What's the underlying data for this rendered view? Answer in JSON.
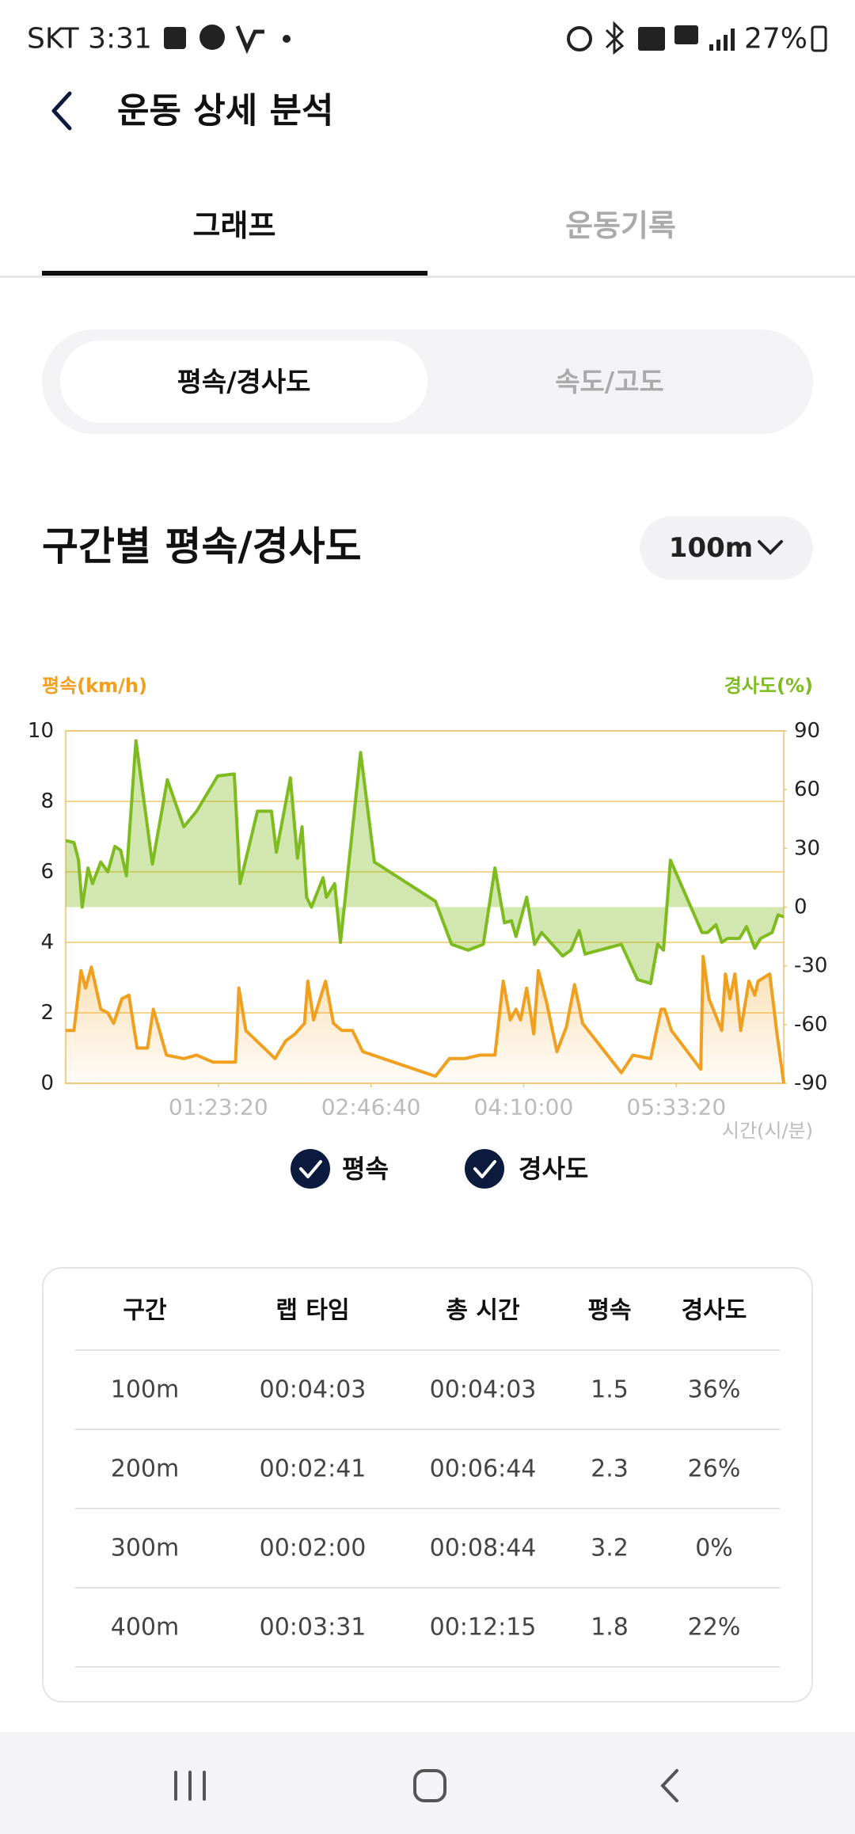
{
  "status_bar": {
    "left": "SKT 3:31",
    "battery": "27%"
  },
  "header": {
    "title": "운동 상세 분석"
  },
  "tabs": [
    "그래프",
    "운동기록"
  ],
  "segments": [
    "평속/경사도",
    "속도/고도"
  ],
  "section": {
    "title": "구간별 평속/경사도",
    "dropdown": "100m"
  },
  "chart_data": {
    "type": "area",
    "y_label": "평속(km/h)",
    "y2_label": "경사도(%)",
    "x_label": "시간(시/분)",
    "xlim": [
      0,
      23520
    ],
    "xticks": [
      {
        "value": 5000,
        "label": "01:23:20"
      },
      {
        "value": 10000,
        "label": "02:46:40"
      },
      {
        "value": 15000,
        "label": "04:10:00"
      },
      {
        "value": 20000,
        "label": "05:33:20"
      }
    ],
    "ylim": [
      0,
      10
    ],
    "yticks": [
      0,
      2,
      4,
      6,
      8,
      10
    ],
    "y2lim": [
      -90,
      90
    ],
    "y2ticks": [
      -90,
      -60,
      -30,
      0,
      30,
      60,
      90
    ],
    "grid": true,
    "series": [
      {
        "name": "경사도",
        "axis": "y2",
        "color": "#7dbb1e",
        "x": [
          0,
          270,
          420,
          540,
          730,
          880,
          1150,
          1380,
          1610,
          1800,
          1990,
          2300,
          2840,
          3330,
          3870,
          4290,
          4980,
          5520,
          5710,
          6280,
          6740,
          6900,
          7360,
          7590,
          7740,
          7890,
          8050,
          8430,
          8540,
          8810,
          9000,
          9660,
          10110,
          12110,
          12640,
          13180,
          13680,
          14060,
          14370,
          14600,
          14750,
          15100,
          15360,
          15590,
          16050,
          16280,
          16550,
          16820,
          17010,
          18200,
          18730,
          19160,
          19390,
          19580,
          19810,
          20840,
          21030,
          21300,
          21490,
          21680,
          22070,
          22300,
          22570,
          22760,
          23140,
          23330,
          23520
        ],
        "values": [
          34,
          33,
          24,
          0,
          20,
          12,
          23,
          18,
          31,
          29,
          16,
          85,
          22,
          65,
          41,
          49,
          67,
          68,
          12,
          49,
          49,
          28,
          66,
          25,
          41,
          5,
          0,
          15,
          5,
          12,
          -18,
          79,
          23,
          3,
          -19,
          -22,
          -19,
          20,
          -8,
          -7,
          -15,
          5,
          -19,
          -13,
          -21,
          -25,
          -22,
          -12,
          -24,
          -19,
          -37,
          -39,
          -19,
          -22,
          24,
          -13,
          -13,
          -9,
          -18,
          -16,
          -16,
          -10,
          -21,
          -16,
          -13,
          -4,
          -5
        ]
      },
      {
        "name": "평속",
        "axis": "y",
        "color": "#f0a01e",
        "x": [
          0,
          270,
          500,
          650,
          840,
          1150,
          1380,
          1570,
          1840,
          2070,
          2340,
          2680,
          2870,
          3300,
          3870,
          4290,
          4830,
          5560,
          5670,
          5900,
          6860,
          7200,
          7510,
          7820,
          7930,
          8120,
          8510,
          8770,
          9040,
          9390,
          9730,
          12110,
          12570,
          13070,
          13560,
          14060,
          14330,
          14560,
          14750,
          14900,
          15100,
          15330,
          15480,
          15750,
          16090,
          16400,
          16670,
          16930,
          18200,
          18580,
          19160,
          19500,
          19620,
          19840,
          20800,
          20880,
          21070,
          21490,
          21610,
          21760,
          21920,
          22110,
          22380,
          22570,
          22680,
          22870,
          23060,
          23300,
          23520
        ],
        "values": [
          1.5,
          1.5,
          3.2,
          2.7,
          3.3,
          2.1,
          2.0,
          1.7,
          2.4,
          2.5,
          1.0,
          1.0,
          2.1,
          0.8,
          0.7,
          0.8,
          0.6,
          0.6,
          2.7,
          1.5,
          0.7,
          1.2,
          1.4,
          1.7,
          2.9,
          1.8,
          2.9,
          1.7,
          1.5,
          1.5,
          0.9,
          0.2,
          0.7,
          0.7,
          0.8,
          0.8,
          2.9,
          1.8,
          2.1,
          1.8,
          2.7,
          1.4,
          3.2,
          2.3,
          0.9,
          1.6,
          2.8,
          1.7,
          0.3,
          0.8,
          0.7,
          2.1,
          2.1,
          1.5,
          0.4,
          3.6,
          2.4,
          1.5,
          3.1,
          2.4,
          3.1,
          1.5,
          2.9,
          2.5,
          2.9,
          3.0,
          3.1,
          1.4,
          0
        ]
      }
    ],
    "legend": [
      "평속",
      "경사도"
    ]
  },
  "table": {
    "columns": [
      "구간",
      "랩 타임",
      "총 시간",
      "평속",
      "경사도"
    ],
    "rows": [
      [
        "100m",
        "00:04:03",
        "00:04:03",
        "1.5",
        "36%"
      ],
      [
        "200m",
        "00:02:41",
        "00:06:44",
        "2.3",
        "26%"
      ],
      [
        "300m",
        "00:02:00",
        "00:08:44",
        "3.2",
        "0%"
      ],
      [
        "400m",
        "00:03:31",
        "00:12:15",
        "1.8",
        "22%"
      ]
    ]
  }
}
